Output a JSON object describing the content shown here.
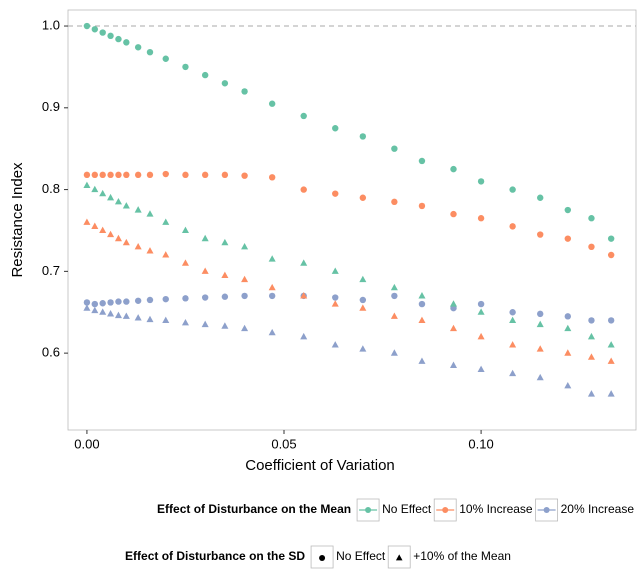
{
  "chart_data": {
    "type": "scatter",
    "xlabel": "Coefficient of Variation",
    "ylabel": "Resistance Index",
    "xlim": [
      -0.0048,
      0.1393
    ],
    "ylim": [
      0.506,
      1.0196
    ],
    "xticks": [
      {
        "value": 0,
        "label": "0.00"
      },
      {
        "value": 0.05,
        "label": "0.05"
      },
      {
        "value": 0.1,
        "label": "0.10"
      }
    ],
    "yticks": [
      0.6,
      0.7,
      0.8,
      0.9,
      {
        "value": 1,
        "label": "1.0"
      }
    ],
    "hline": 1,
    "grid": false,
    "x": [
      0,
      0.002,
      0.004,
      0.006,
      0.008,
      0.01,
      0.013,
      0.016,
      0.02,
      0.025,
      0.03,
      0.035,
      0.04,
      0.047,
      0.055,
      0.063,
      0.07,
      0.078,
      0.085,
      0.093,
      0.1,
      0.108,
      0.115,
      0.122,
      0.128,
      0.133
    ],
    "series": [
      {
        "color": "#66c2a5",
        "shape": "circle",
        "values": [
          1.0,
          0.996,
          0.992,
          0.988,
          0.984,
          0.98,
          0.974,
          0.968,
          0.96,
          0.95,
          0.94,
          0.93,
          0.92,
          0.905,
          0.89,
          0.875,
          0.865,
          0.85,
          0.835,
          0.825,
          0.81,
          0.8,
          0.79,
          0.775,
          0.765,
          0.74
        ]
      },
      {
        "color": "#fc8d62",
        "shape": "circle",
        "values": [
          0.818,
          0.818,
          0.818,
          0.818,
          0.818,
          0.818,
          0.818,
          0.818,
          0.819,
          0.818,
          0.818,
          0.818,
          0.817,
          0.815,
          0.8,
          0.795,
          0.79,
          0.785,
          0.78,
          0.77,
          0.765,
          0.755,
          0.745,
          0.74,
          0.73,
          0.72
        ]
      },
      {
        "color": "#8da0cb",
        "shape": "circle",
        "values": [
          0.662,
          0.66,
          0.661,
          0.662,
          0.663,
          0.663,
          0.664,
          0.665,
          0.666,
          0.667,
          0.668,
          0.669,
          0.67,
          0.67,
          0.67,
          0.668,
          0.665,
          0.67,
          0.66,
          0.655,
          0.66,
          0.65,
          0.648,
          0.645,
          0.64,
          0.64
        ]
      },
      {
        "color": "#66c2a5",
        "shape": "triangle",
        "values": [
          0.805,
          0.8,
          0.795,
          0.79,
          0.785,
          0.78,
          0.775,
          0.77,
          0.76,
          0.75,
          0.74,
          0.735,
          0.73,
          0.715,
          0.71,
          0.7,
          0.69,
          0.68,
          0.67,
          0.66,
          0.65,
          0.64,
          0.635,
          0.63,
          0.62,
          0.61
        ]
      },
      {
        "color": "#fc8d62",
        "shape": "triangle",
        "values": [
          0.76,
          0.755,
          0.75,
          0.745,
          0.74,
          0.735,
          0.73,
          0.725,
          0.72,
          0.71,
          0.7,
          0.695,
          0.69,
          0.68,
          0.67,
          0.66,
          0.655,
          0.645,
          0.64,
          0.63,
          0.62,
          0.61,
          0.605,
          0.6,
          0.595,
          0.59
        ]
      },
      {
        "color": "#8da0cb",
        "shape": "triangle",
        "values": [
          0.655,
          0.652,
          0.65,
          0.648,
          0.646,
          0.645,
          0.643,
          0.641,
          0.64,
          0.637,
          0.635,
          0.633,
          0.63,
          0.625,
          0.62,
          0.61,
          0.605,
          0.6,
          0.59,
          0.585,
          0.58,
          0.575,
          0.57,
          0.56,
          0.55,
          0.55
        ]
      }
    ],
    "legends": [
      {
        "title": "Effect of Disturbance on the Mean",
        "entries": [
          {
            "label": "No Effect",
            "color": "#66c2a5"
          },
          {
            "label": "10% Increase",
            "color": "#fc8d62"
          },
          {
            "label": "20% Increase",
            "color": "#8da0cb"
          }
        ]
      },
      {
        "title": "Effect of Disturbance on the SD",
        "entries": [
          {
            "label": "No Effect",
            "shape": "circle"
          },
          {
            "label": "+10% of the Mean",
            "shape": "triangle"
          }
        ]
      }
    ]
  }
}
